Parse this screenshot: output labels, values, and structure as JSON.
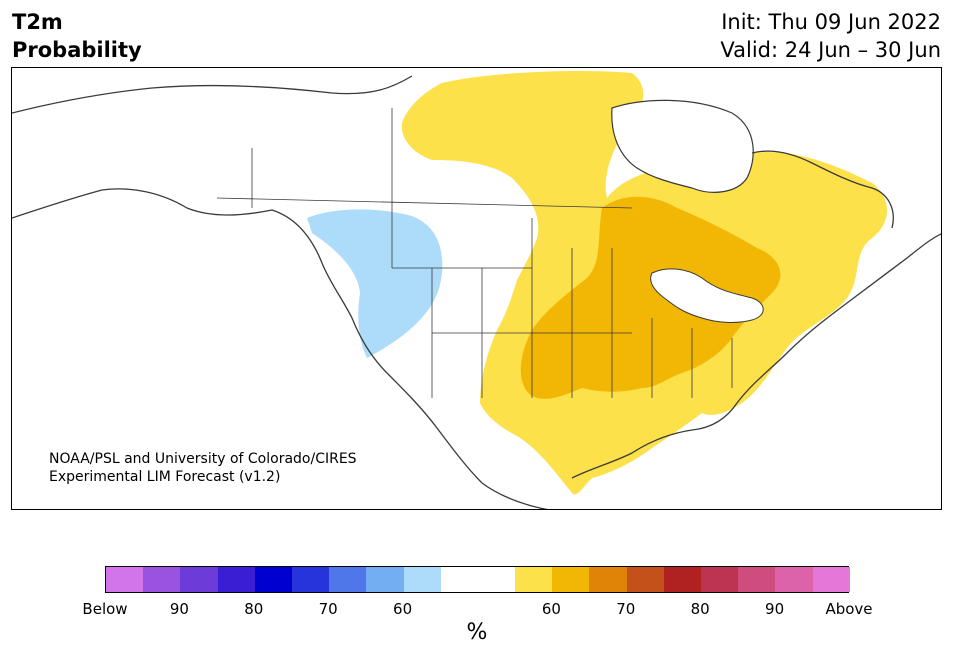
{
  "header": {
    "title_line1": "T2m",
    "title_line2": "Probability",
    "init": "Init: Thu 09 Jun 2022",
    "valid": "Valid: 24 Jun – 30 Jun"
  },
  "map": {
    "credit_line1": "NOAA/PSL and University of Colorado/CIRES",
    "credit_line2": "Experimental LIM Forecast (v1.2)",
    "colors": {
      "land_line": "#3a3a3a",
      "below_60": "#acdcfa",
      "above_60": "#fde14a",
      "above_65": "#f2b705"
    }
  },
  "colorbar": {
    "colors": [
      "#d375ea",
      "#9a53df",
      "#6c3bd8",
      "#3a1ed3",
      "#0000cf",
      "#2734d9",
      "#4f77ea",
      "#74aef2",
      "#acdcfa",
      "#ffffff",
      "#ffffff",
      "#fde14a",
      "#f2b705",
      "#df8407",
      "#c5511a",
      "#b02121",
      "#bd3452",
      "#cf4d7e",
      "#dc62aa",
      "#e577d8"
    ],
    "tick_labels": [
      "Below",
      "90",
      "80",
      "70",
      "60",
      "60",
      "70",
      "80",
      "90",
      "Above"
    ],
    "units": "%"
  }
}
